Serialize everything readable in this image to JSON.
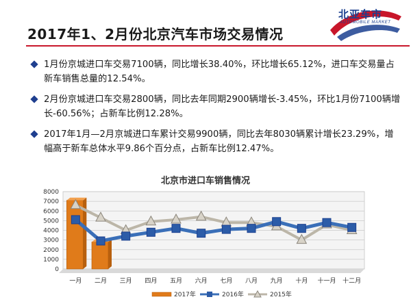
{
  "page": {
    "title": "2017年1、2月份北京汽车市场交易情况",
    "logo_text": "北亚车市",
    "logo_sub": "AUTOMOBILE MARKET"
  },
  "bullets": [
    "1月份京城进口车交易7100辆，同比增长38.40%，环比增长65.12%，进口车交易量占新车销售总量的12.54%。",
    "2月份京城进口车交易2800辆，同比去年同期2900辆增长-3.45%，环比1月份7100辆增长-60.56%；占新车比例12.28%。",
    "2017年1月—2月京城进口车累计交易9900辆，同比去年8030辆累计增长23.29%，增幅高于新车总体水平9.86个百分点，占新车比例12.47%。"
  ],
  "colors": {
    "accent_red": "#c8162a",
    "bullet_blue": "#1f3f8f",
    "bar_2017": "#e07b1a",
    "line_2016": "#3a6fb8",
    "line_2015": "#bcb6a8"
  },
  "chart_data": {
    "type": "bar+line",
    "title": "北京市进口车销售情况",
    "categories": [
      "一月",
      "二月",
      "三月",
      "四月",
      "五月",
      "六月",
      "七月",
      "八月",
      "九月",
      "十月",
      "十一月",
      "十二月"
    ],
    "ylim": [
      0,
      8000
    ],
    "yticks": [
      0,
      1000,
      2000,
      3000,
      4000,
      5000,
      6000,
      7000,
      8000
    ],
    "grid": true,
    "legend_position": "bottom",
    "series": [
      {
        "name": "2017年",
        "type": "bar",
        "values": [
          7100,
          2800,
          null,
          null,
          null,
          null,
          null,
          null,
          null,
          null,
          null,
          null
        ]
      },
      {
        "name": "2016年",
        "type": "line",
        "values": [
          5100,
          2900,
          3400,
          3800,
          4200,
          3700,
          4100,
          4200,
          4900,
          4200,
          4800,
          4300
        ]
      },
      {
        "name": "2015年",
        "type": "line",
        "values": [
          6600,
          5300,
          4000,
          4900,
          5100,
          5400,
          4800,
          4800,
          4400,
          3000,
          4600,
          4000
        ]
      }
    ]
  }
}
